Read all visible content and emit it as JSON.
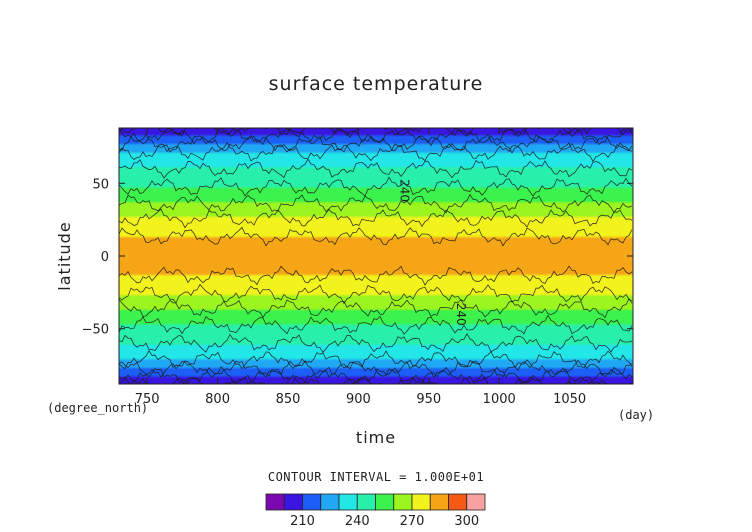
{
  "chart_data": {
    "type": "heatmap",
    "title": "surface temperature",
    "xlabel": "time",
    "ylabel": "latitude",
    "x_unit": "(day)",
    "y_unit": "(degree_north)",
    "xlim": [
      730,
      1095
    ],
    "ylim": [
      -88,
      88
    ],
    "x_ticks": [
      750,
      800,
      850,
      900,
      950,
      1000,
      1050
    ],
    "y_ticks": [
      -50,
      0,
      50
    ],
    "contour_labels": [
      "240",
      "240"
    ],
    "zonal_profile": {
      "latitude": [
        -88,
        -80,
        -75,
        -70,
        -60,
        -50,
        -40,
        -30,
        -20,
        -10,
        0,
        10,
        20,
        30,
        40,
        50,
        60,
        70,
        75,
        80,
        88
      ],
      "temperature": [
        200,
        215,
        225,
        232,
        240,
        248,
        256,
        266,
        276,
        282,
        284,
        282,
        276,
        266,
        256,
        248,
        240,
        232,
        225,
        215,
        200
      ]
    },
    "contour_interval_text": "CONTOUR INTERVAL = 1.000E+01",
    "colorbar": {
      "min": 190,
      "max": 310,
      "step": 10,
      "tick_labels": [
        "210",
        "240",
        "270",
        "300"
      ],
      "colors": [
        "#7a0ab0",
        "#3a14e0",
        "#1c5ef6",
        "#21a8f5",
        "#23e6e6",
        "#28f0aa",
        "#3cf24c",
        "#9cf51e",
        "#f2f21c",
        "#f5a515",
        "#f55a14",
        "#f7a2a0"
      ]
    }
  }
}
